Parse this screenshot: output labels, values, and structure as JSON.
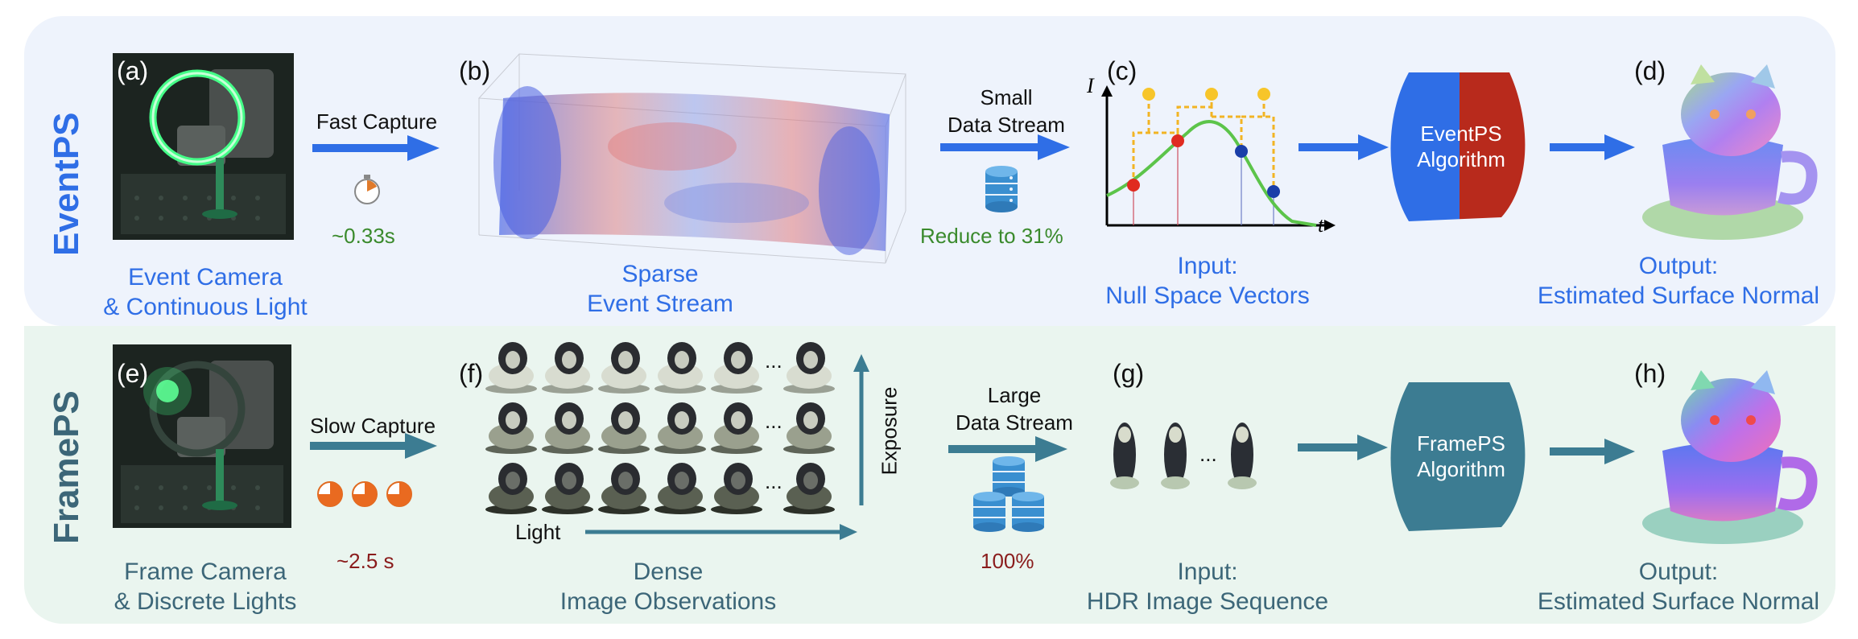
{
  "rows": {
    "top": {
      "label": "EventPS",
      "camera_caption": [
        "Event Camera",
        "& Continuous Light"
      ],
      "capture_label": "Fast Capture",
      "capture_time": "~0.33s",
      "stream_caption": [
        "Sparse",
        "Event Stream"
      ],
      "data_label": [
        "Small",
        "Data Stream"
      ],
      "data_reduction": "Reduce to 31%",
      "algorithm": [
        "EventPS",
        "Algorithm"
      ],
      "input_caption": [
        "Input:",
        "Null Space Vectors"
      ],
      "output_caption": [
        "Output:",
        "Estimated Surface Normal"
      ]
    },
    "bottom": {
      "label": "FramePS",
      "camera_caption": [
        "Frame Camera",
        "& Discrete Lights"
      ],
      "capture_label": "Slow Capture",
      "capture_time": "~2.5 s",
      "stream_caption": [
        "Dense",
        "Image Observations"
      ],
      "light_axis": "Light",
      "exposure_axis": "Exposure",
      "ellipsis": "...",
      "data_label": [
        "Large",
        "Data Stream"
      ],
      "data_amount": "100%",
      "algorithm": [
        "FramePS",
        "Algorithm"
      ],
      "input_caption": [
        "Input:",
        "HDR Image Sequence"
      ],
      "output_caption": [
        "Output:",
        "Estimated Surface Normal"
      ]
    }
  },
  "panel_letters": [
    "(a)",
    "(b)",
    "(c)",
    "(d)",
    "(e)",
    "(f)",
    "(g)",
    "(h)"
  ],
  "plot_axes": {
    "y": "I",
    "x": "t"
  },
  "colors": {
    "event_blue": "#2f6ee6",
    "frame_teal": "#3c6678",
    "reduce_green": "#3a8a2c",
    "amount_red": "#8a1c1c",
    "algo_red": "#b82a1c",
    "top_bg": "#eef3fc",
    "bottom_bg": "#eaf5ef"
  }
}
